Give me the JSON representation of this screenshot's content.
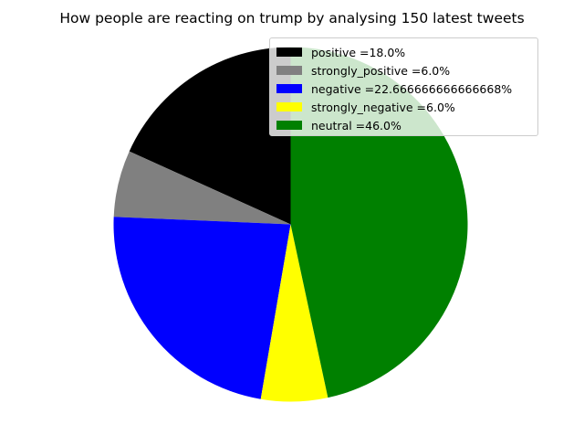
{
  "chart_data": {
    "type": "pie",
    "title": "How people are reacting on trump by analysing 150 latest tweets",
    "slices": [
      {
        "label": "positive =18.0%",
        "value": 18.0,
        "color": "#000000"
      },
      {
        "label": "strongly_positive =6.0%",
        "value": 6.0,
        "color": "#808080"
      },
      {
        "label": "negative =22.666666666666668%",
        "value": 22.666666666666668,
        "color": "#0000ff"
      },
      {
        "label": "strongly_negative =6.0%",
        "value": 6.0,
        "color": "#ffff00"
      },
      {
        "label": "neutral =46.0%",
        "value": 46.0,
        "color": "#008000"
      }
    ],
    "start_angle_deg": 90,
    "direction": "counterclockwise",
    "legend_position": "top-right"
  }
}
